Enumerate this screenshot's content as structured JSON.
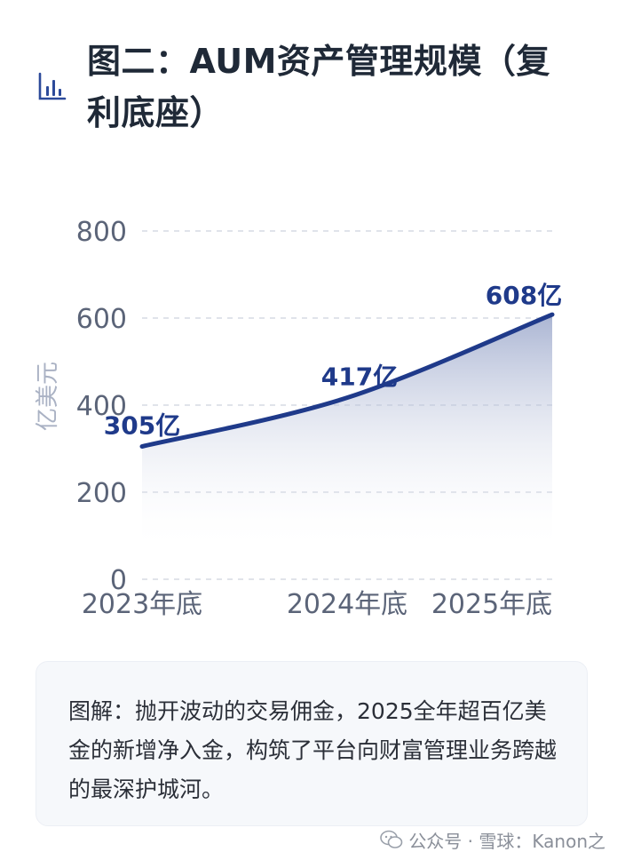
{
  "title": "图二：AUM资产管理规模（复利底座）",
  "icons": {
    "title_icon": "bar-chart-icon",
    "watermark_icon": "wechat-icon"
  },
  "colors": {
    "line": "#1f3a8a",
    "area_top": "#8e9cc4",
    "grid": "#d6dae3",
    "tick_text": "#5b6478"
  },
  "chart_data": {
    "type": "area",
    "title": "",
    "xlabel": "",
    "ylabel": "亿美元",
    "categories": [
      "2023年底",
      "2024年底",
      "2025年底"
    ],
    "series": [
      {
        "values": [
          305,
          417,
          608
        ],
        "labels": [
          "305亿",
          "417亿",
          "608亿"
        ]
      }
    ],
    "ylim": [
      0,
      800
    ],
    "yticks": [
      0,
      200,
      400,
      600,
      800
    ],
    "ytick_labels": [
      "0",
      "200",
      "400",
      "600",
      "800"
    ],
    "grid": true,
    "grid_style": "dashed",
    "legend": "none"
  },
  "note": {
    "text": "图解：抛开波动的交易佣金，2025全年超百亿美金的新增净入金，构筑了平台向财富管理业务跨越的最深护城河。"
  },
  "watermark": {
    "text": "公众号 · 雪球：Kanon之"
  }
}
